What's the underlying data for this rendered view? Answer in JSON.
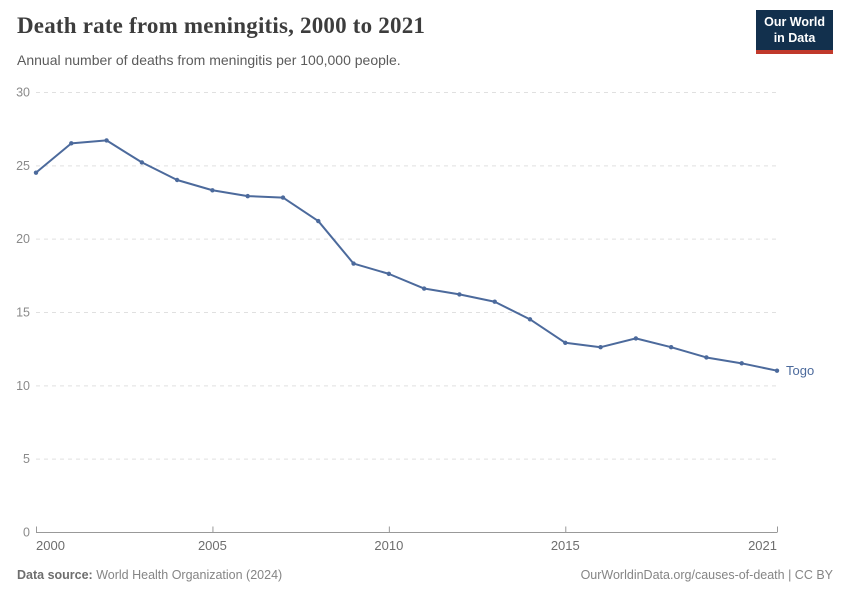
{
  "header": {
    "title": "Death rate from meningitis, 2000 to 2021",
    "subtitle": "Annual number of deaths from meningitis per 100,000 people."
  },
  "logo": {
    "line1": "Our World",
    "line2": "in Data",
    "bg_color": "#12304d",
    "accent_color": "#c0392b"
  },
  "chart_data": {
    "type": "line",
    "title": "Death rate from meningitis, 2000 to 2021",
    "xlabel": "",
    "ylabel": "",
    "xlim": [
      2000,
      2021
    ],
    "ylim": [
      0,
      30
    ],
    "x_ticks": [
      2000,
      2005,
      2010,
      2015,
      2021
    ],
    "y_ticks": [
      0,
      5,
      10,
      15,
      20,
      25,
      30
    ],
    "grid": "horizontal-dashed",
    "legend_position": "end-of-line-label",
    "series": [
      {
        "name": "Togo",
        "color": "#4C6A9C",
        "x": [
          2000,
          2001,
          2002,
          2003,
          2004,
          2005,
          2006,
          2007,
          2008,
          2009,
          2010,
          2011,
          2012,
          2013,
          2014,
          2015,
          2016,
          2017,
          2018,
          2019,
          2020,
          2021
        ],
        "values": [
          24.5,
          26.5,
          26.7,
          25.2,
          24.0,
          23.3,
          22.9,
          22.8,
          21.2,
          18.3,
          17.6,
          16.6,
          16.2,
          15.7,
          14.5,
          12.9,
          12.6,
          13.2,
          12.6,
          11.9,
          11.5,
          11.0
        ]
      }
    ],
    "colors": {
      "gridline": "#e0e0e0",
      "axis": "#999999",
      "tick_label": "#6e6e6e",
      "y_label": "#8a8a8a"
    }
  },
  "footer": {
    "source_label": "Data source:",
    "source_value": " World Health Organization (2024)",
    "rights": "OurWorldinData.org/causes-of-death | CC BY"
  }
}
